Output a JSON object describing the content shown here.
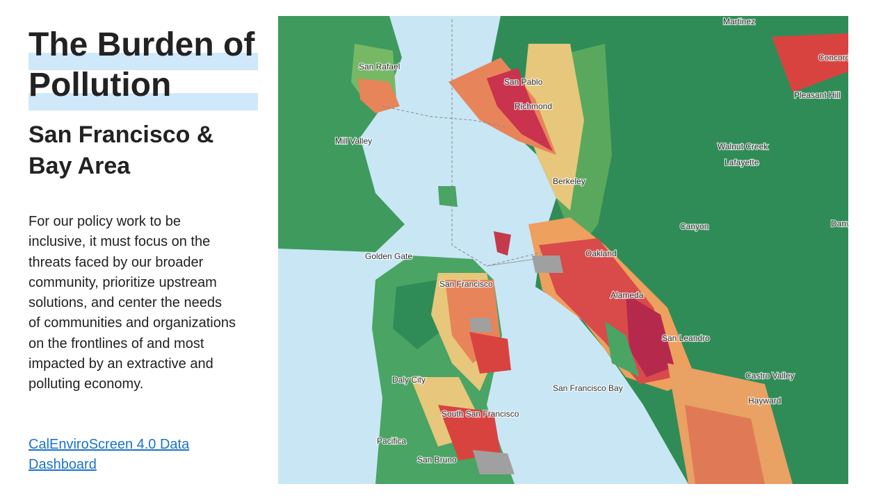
{
  "slide": {
    "title": "The Burden of Pollution",
    "subtitle": "San Francisco & Bay Area",
    "body": "For our policy work to be inclusive, it must focus on the threats faced by our broader community, prioritize upstream solutions, and center the needs of communities and organizations on the frontlines of and most impacted by an extractive and polluting economy.",
    "link": "CalEnviroScreen 4.0 Data Dashboard"
  },
  "map": {
    "labels": [
      "Martinez",
      "Concord",
      "Pleasant Hill",
      "San Rafael",
      "San Pablo",
      "Richmond",
      "Mill Valley",
      "Walnut Creek",
      "Lafayette",
      "Berkeley",
      "Canyon",
      "Danville",
      "Golden Gate",
      "Oakland",
      "San Francisco",
      "Alameda",
      "San Leandro",
      "Castro Valley",
      "Daly City",
      "San Francisco Bay",
      "Hayward",
      "South San Francisco",
      "Pacifica",
      "San Bruno"
    ]
  }
}
